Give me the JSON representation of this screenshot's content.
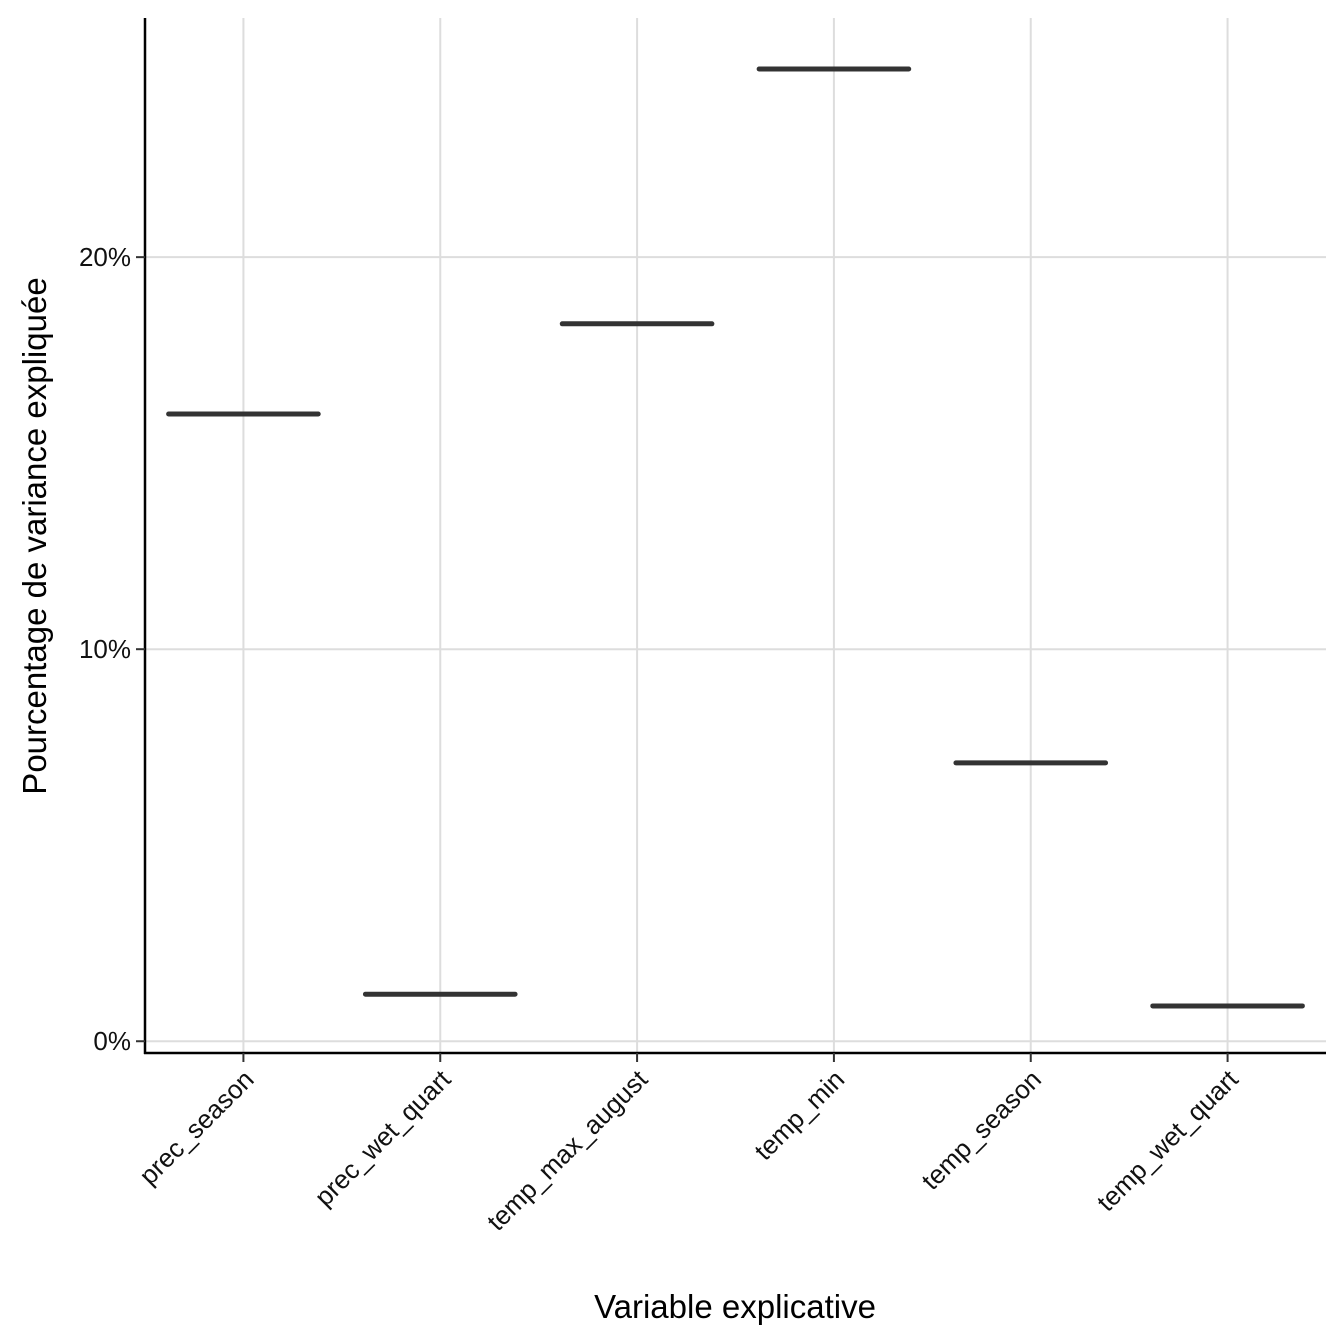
{
  "chart_data": {
    "type": "boxplot",
    "categories": [
      "prec_season",
      "prec_wet_quart",
      "temp_max_august",
      "temp_min",
      "temp_season",
      "temp_wet_quart"
    ],
    "values": [
      16.0,
      1.2,
      18.3,
      24.8,
      7.1,
      0.9
    ],
    "xlabel": "Variable explicative",
    "ylabel": "Pourcentage de variance expliquée",
    "ylim": [
      -0.3,
      26.1
    ],
    "yticks": [
      0,
      10,
      20
    ],
    "ytick_labels": [
      "0%",
      "10%",
      "20%"
    ],
    "grid": true,
    "legend": "none",
    "colors": {
      "mark": "#333333",
      "grid": "#dddddd",
      "axis": "#000000",
      "background": "#ffffff"
    }
  }
}
